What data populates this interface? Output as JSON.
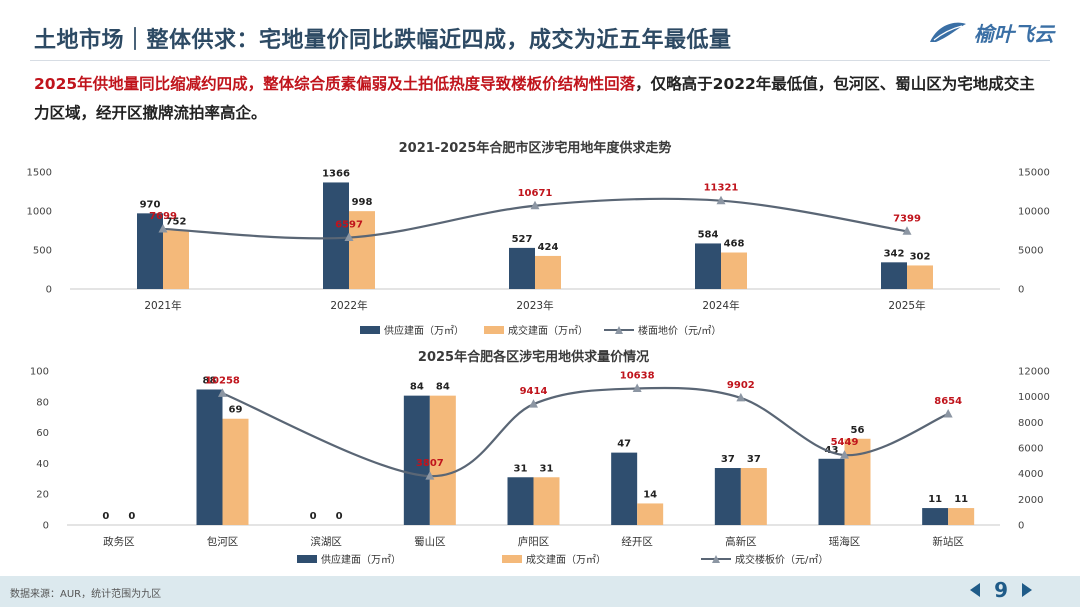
{
  "header": {
    "title": "土地市场｜整体供求：宅地量价同比跌幅近四成，成交为近五年最低量",
    "logo_text": "榆叶飞云",
    "summary_highlight": "2025年供地量同比缩减约四成，整体综合质素偏弱及土拍低热度导致楼板价结构性回落",
    "summary_rest": "，仅略高于2022年最低值，包河区、蜀山区为宅地成交主力区域，经开区撤牌流拍率高企。"
  },
  "colors": {
    "supply": "#2f4e6f",
    "deal": "#f4b97a",
    "price_line": "#5a6675",
    "price_label": "#c0141c",
    "title": "#2d4a64"
  },
  "footer": {
    "source": "数据来源：AUR，统计范围为九区",
    "page": "9"
  },
  "chart_data": [
    {
      "type": "bar",
      "title": "2021-2025年合肥市区涉宅用地年度供求走势",
      "categories": [
        "2021年",
        "2022年",
        "2023年",
        "2024年",
        "2025年"
      ],
      "series": [
        {
          "name": "供应建面（万㎡）",
          "type": "bar",
          "axis": "left",
          "values": [
            970,
            1366,
            527,
            584,
            342
          ]
        },
        {
          "name": "成交建面（万㎡）",
          "type": "bar",
          "axis": "left",
          "values": [
            752,
            998,
            424,
            468,
            302
          ]
        },
        {
          "name": "楼面地价（元/㎡）",
          "type": "line",
          "axis": "right",
          "values": [
            7699,
            6597,
            10671,
            11321,
            7399
          ]
        }
      ],
      "ylim": [
        0,
        1500
      ],
      "yticks": [
        "0",
        "500",
        "1000",
        "1500"
      ],
      "y2lim": [
        0,
        15000
      ],
      "y2ticks": [
        "0",
        "5000",
        "10000",
        "15000"
      ],
      "legend": "bottom"
    },
    {
      "type": "bar",
      "title": "2025年合肥各区涉宅用地供求量价情况",
      "categories": [
        "政务区",
        "包河区",
        "滨湖区",
        "蜀山区",
        "庐阳区",
        "经开区",
        "高新区",
        "瑶海区",
        "新站区"
      ],
      "series": [
        {
          "name": "供应建面（万㎡）",
          "type": "bar",
          "axis": "left",
          "values": [
            0,
            88,
            0,
            84,
            31,
            47,
            37,
            43,
            11
          ]
        },
        {
          "name": "成交建面（万㎡）",
          "type": "bar",
          "axis": "left",
          "values": [
            0,
            69,
            0,
            84,
            31,
            14,
            37,
            56,
            11
          ]
        },
        {
          "name": "成交楼板价（元/㎡）",
          "type": "line",
          "axis": "right",
          "values": [
            null,
            10258,
            null,
            3807,
            9414,
            10638,
            9902,
            5449,
            8654
          ]
        }
      ],
      "ylim": [
        0,
        100
      ],
      "yticks": [
        "0",
        "20",
        "40",
        "60",
        "80",
        "100"
      ],
      "y2lim": [
        0,
        12000
      ],
      "y2ticks": [
        "0",
        "2000",
        "4000",
        "6000",
        "8000",
        "10000",
        "12000"
      ],
      "legend": "bottom"
    }
  ]
}
